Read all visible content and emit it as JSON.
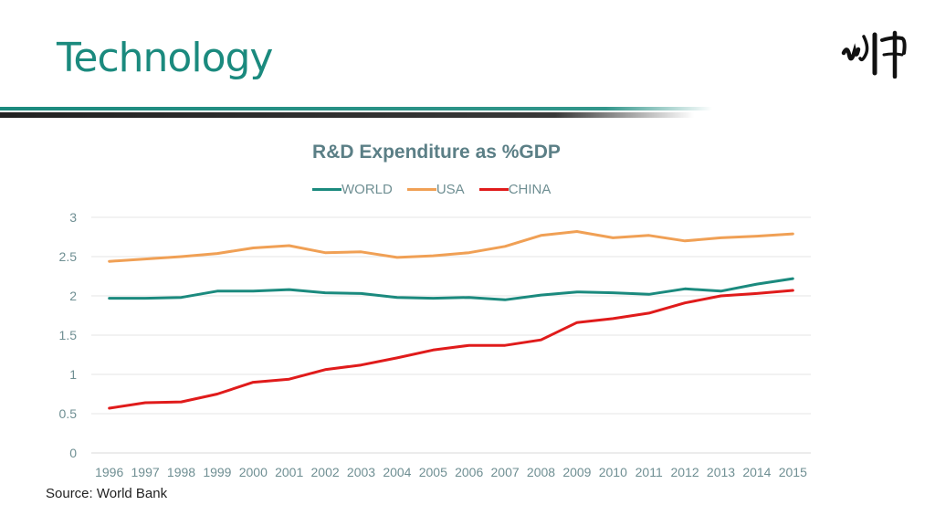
{
  "slide": {
    "title": "Technology",
    "source": "Source: World Bank",
    "title_color": "#1b8a7e"
  },
  "chart_data": {
    "type": "line",
    "title": "R&D Expenditure as %GDP",
    "xlabel": "",
    "ylabel": "",
    "ylim": [
      0,
      3
    ],
    "yticks": [
      "0",
      "0.5",
      "1",
      "1.5",
      "2",
      "2.5",
      "3"
    ],
    "grid": true,
    "legend_position": "top",
    "categories": [
      "1996",
      "1997",
      "1998",
      "1999",
      "2000",
      "2001",
      "2002",
      "2003",
      "2004",
      "2005",
      "2006",
      "2007",
      "2008",
      "2009",
      "2010",
      "2011",
      "2012",
      "2013",
      "2014",
      "2015"
    ],
    "series": [
      {
        "name": "WORLD",
        "color": "#1b8a7e",
        "values": [
          1.97,
          1.97,
          1.98,
          2.06,
          2.06,
          2.08,
          2.04,
          2.03,
          1.98,
          1.97,
          1.98,
          1.95,
          2.01,
          2.05,
          2.04,
          2.02,
          2.09,
          2.06,
          2.15,
          2.22
        ]
      },
      {
        "name": "USA",
        "color": "#f0a055",
        "values": [
          2.44,
          2.47,
          2.5,
          2.54,
          2.61,
          2.64,
          2.55,
          2.56,
          2.49,
          2.51,
          2.55,
          2.63,
          2.77,
          2.82,
          2.74,
          2.77,
          2.7,
          2.74,
          2.76,
          2.79
        ]
      },
      {
        "name": "CHINA",
        "color": "#e01b1b",
        "values": [
          0.57,
          0.64,
          0.65,
          0.75,
          0.9,
          0.94,
          1.06,
          1.12,
          1.21,
          1.31,
          1.37,
          1.37,
          1.44,
          1.66,
          1.71,
          1.78,
          1.91,
          2.0,
          2.03,
          2.07
        ]
      }
    ]
  }
}
